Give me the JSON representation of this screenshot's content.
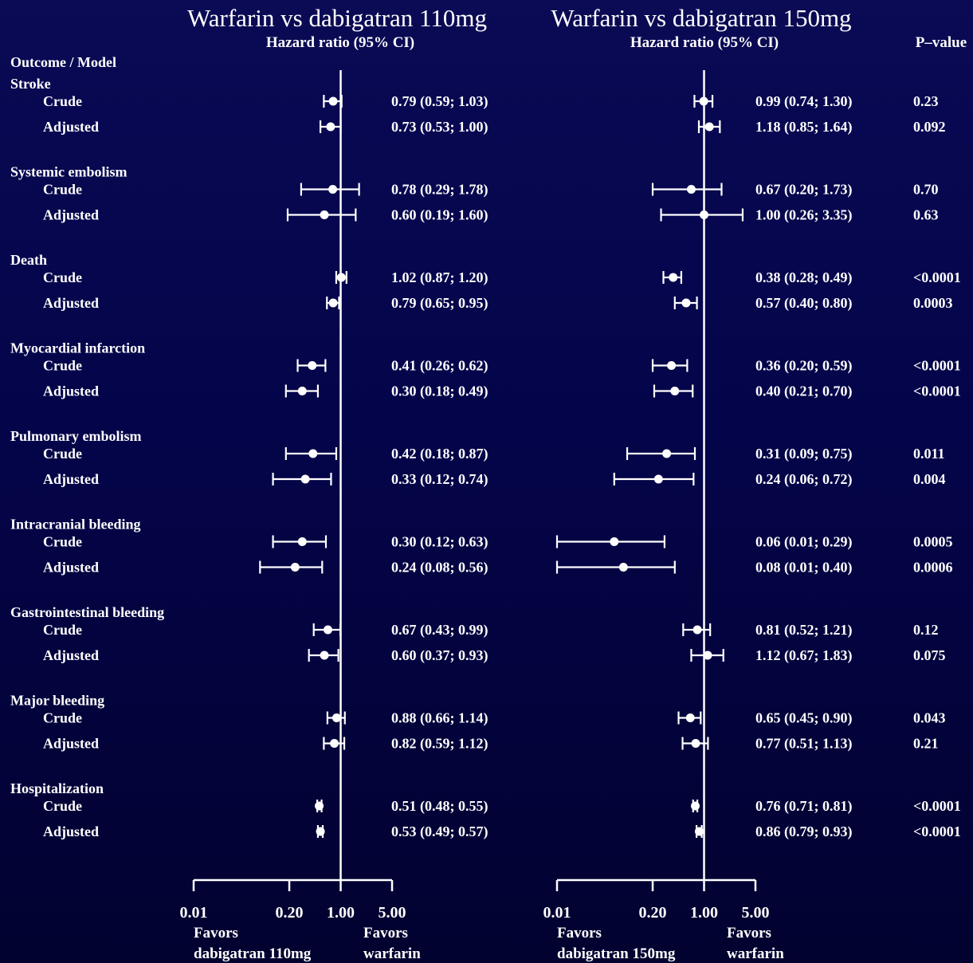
{
  "titles": {
    "left": "Warfarin vs dabigatran 110mg",
    "right": "Warfarin vs dabigatran 150mg",
    "left_sub": "Hazard ratio (95% CI)",
    "right_sub": "Hazard ratio (95% CI)",
    "pvalue_header": "P–value",
    "outcome_header": "Outcome / Model"
  },
  "colors": {
    "background": "#04044a",
    "foreground": "#ffffff"
  },
  "chart_data": {
    "type": "forest",
    "scale": "log",
    "xlim": [
      0.01,
      5.0
    ],
    "reference_line": 1.0,
    "xticks": [
      0.01,
      0.2,
      1.0,
      5.0
    ],
    "xtick_labels": [
      "0.01",
      "0.20",
      "1.00",
      "5.00"
    ],
    "panels": [
      {
        "key": "p110",
        "title": "Warfarin vs dabigatran 110mg",
        "favors_left": [
          "Favors",
          "dabigatran 110mg"
        ],
        "favors_right": [
          "Favors",
          "warfarin"
        ]
      },
      {
        "key": "p150",
        "title": "Warfarin vs dabigatran 150mg",
        "favors_left": [
          "Favors",
          "dabigatran 150mg"
        ],
        "favors_right": [
          "Favors",
          "warfarin"
        ]
      }
    ],
    "outcomes": [
      {
        "name": "Stroke",
        "rows": [
          {
            "model": "Crude",
            "p110": {
              "hr": 0.79,
              "lo": 0.59,
              "hi": 1.03,
              "label": "0.79 (0.59; 1.03)"
            },
            "p150": {
              "hr": 0.99,
              "lo": 0.74,
              "hi": 1.3,
              "label": "0.99 (0.74; 1.30)"
            },
            "p": "0.23"
          },
          {
            "model": "Adjusted",
            "p110": {
              "hr": 0.73,
              "lo": 0.53,
              "hi": 1.0,
              "label": "0.73 (0.53; 1.00)"
            },
            "p150": {
              "hr": 1.18,
              "lo": 0.85,
              "hi": 1.64,
              "label": "1.18 (0.85; 1.64)"
            },
            "p": "0.092"
          }
        ]
      },
      {
        "name": "Systemic embolism",
        "rows": [
          {
            "model": "Crude",
            "p110": {
              "hr": 0.78,
              "lo": 0.29,
              "hi": 1.78,
              "label": "0.78 (0.29; 1.78)"
            },
            "p150": {
              "hr": 0.67,
              "lo": 0.2,
              "hi": 1.73,
              "label": "0.67 (0.20; 1.73)"
            },
            "p": "0.70"
          },
          {
            "model": "Adjusted",
            "p110": {
              "hr": 0.6,
              "lo": 0.19,
              "hi": 1.6,
              "label": "0.60 (0.19; 1.60)"
            },
            "p150": {
              "hr": 1.0,
              "lo": 0.26,
              "hi": 3.35,
              "label": "1.00 (0.26; 3.35)"
            },
            "p": "0.63"
          }
        ]
      },
      {
        "name": "Death",
        "rows": [
          {
            "model": "Crude",
            "p110": {
              "hr": 1.02,
              "lo": 0.87,
              "hi": 1.2,
              "label": "1.02 (0.87; 1.20)"
            },
            "p150": {
              "hr": 0.38,
              "lo": 0.28,
              "hi": 0.49,
              "label": "0.38 (0.28; 0.49)"
            },
            "p": "<0.0001"
          },
          {
            "model": "Adjusted",
            "p110": {
              "hr": 0.79,
              "lo": 0.65,
              "hi": 0.95,
              "label": "0.79 (0.65; 0.95)"
            },
            "p150": {
              "hr": 0.57,
              "lo": 0.4,
              "hi": 0.8,
              "label": "0.57 (0.40; 0.80)"
            },
            "p": "0.0003"
          }
        ]
      },
      {
        "name": "Myocardial infarction",
        "rows": [
          {
            "model": "Crude",
            "p110": {
              "hr": 0.41,
              "lo": 0.26,
              "hi": 0.62,
              "label": "0.41 (0.26; 0.62)"
            },
            "p150": {
              "hr": 0.36,
              "lo": 0.2,
              "hi": 0.59,
              "label": "0.36 (0.20; 0.59)"
            },
            "p": "<0.0001"
          },
          {
            "model": "Adjusted",
            "p110": {
              "hr": 0.3,
              "lo": 0.18,
              "hi": 0.49,
              "label": "0.30 (0.18; 0.49)"
            },
            "p150": {
              "hr": 0.4,
              "lo": 0.21,
              "hi": 0.7,
              "label": "0.40 (0.21; 0.70)"
            },
            "p": "<0.0001"
          }
        ]
      },
      {
        "name": "Pulmonary embolism",
        "rows": [
          {
            "model": "Crude",
            "p110": {
              "hr": 0.42,
              "lo": 0.18,
              "hi": 0.87,
              "label": "0.42 (0.18; 0.87)"
            },
            "p150": {
              "hr": 0.31,
              "lo": 0.09,
              "hi": 0.75,
              "label": "0.31 (0.09; 0.75)"
            },
            "p": "0.011"
          },
          {
            "model": "Adjusted",
            "p110": {
              "hr": 0.33,
              "lo": 0.12,
              "hi": 0.74,
              "label": "0.33 (0.12; 0.74)"
            },
            "p150": {
              "hr": 0.24,
              "lo": 0.06,
              "hi": 0.72,
              "label": "0.24 (0.06; 0.72)"
            },
            "p": "0.004"
          }
        ]
      },
      {
        "name": "Intracranial bleeding",
        "rows": [
          {
            "model": "Crude",
            "p110": {
              "hr": 0.3,
              "lo": 0.12,
              "hi": 0.63,
              "label": "0.30 (0.12; 0.63)"
            },
            "p150": {
              "hr": 0.06,
              "lo": 0.01,
              "hi": 0.29,
              "label": "0.06 (0.01; 0.29)"
            },
            "p": "0.0005"
          },
          {
            "model": "Adjusted",
            "p110": {
              "hr": 0.24,
              "lo": 0.08,
              "hi": 0.56,
              "label": "0.24 (0.08; 0.56)"
            },
            "p150": {
              "hr": 0.08,
              "lo": 0.01,
              "hi": 0.4,
              "label": "0.08 (0.01; 0.40)"
            },
            "p": "0.0006"
          }
        ]
      },
      {
        "name": "Gastrointestinal bleeding",
        "rows": [
          {
            "model": "Crude",
            "p110": {
              "hr": 0.67,
              "lo": 0.43,
              "hi": 0.99,
              "label": "0.67 (0.43; 0.99)"
            },
            "p150": {
              "hr": 0.81,
              "lo": 0.52,
              "hi": 1.21,
              "label": "0.81 (0.52; 1.21)"
            },
            "p": "0.12"
          },
          {
            "model": "Adjusted",
            "p110": {
              "hr": 0.6,
              "lo": 0.37,
              "hi": 0.93,
              "label": "0.60 (0.37; 0.93)"
            },
            "p150": {
              "hr": 1.12,
              "lo": 0.67,
              "hi": 1.83,
              "label": "1.12 (0.67; 1.83)"
            },
            "p": "0.075"
          }
        ]
      },
      {
        "name": "Major bleeding",
        "rows": [
          {
            "model": "Crude",
            "p110": {
              "hr": 0.88,
              "lo": 0.66,
              "hi": 1.14,
              "label": "0.88 (0.66; 1.14)"
            },
            "p150": {
              "hr": 0.65,
              "lo": 0.45,
              "hi": 0.9,
              "label": "0.65 (0.45; 0.90)"
            },
            "p": "0.043"
          },
          {
            "model": "Adjusted",
            "p110": {
              "hr": 0.82,
              "lo": 0.59,
              "hi": 1.12,
              "label": "0.82 (0.59; 1.12)"
            },
            "p150": {
              "hr": 0.77,
              "lo": 0.51,
              "hi": 1.13,
              "label": "0.77 (0.51; 1.13)"
            },
            "p": "0.21"
          }
        ]
      },
      {
        "name": "Hospitalization",
        "rows": [
          {
            "model": "Crude",
            "p110": {
              "hr": 0.51,
              "lo": 0.48,
              "hi": 0.55,
              "label": "0.51 (0.48; 0.55)"
            },
            "p150": {
              "hr": 0.76,
              "lo": 0.71,
              "hi": 0.81,
              "label": "0.76 (0.71; 0.81)"
            },
            "p": "<0.0001"
          },
          {
            "model": "Adjusted",
            "p110": {
              "hr": 0.53,
              "lo": 0.49,
              "hi": 0.57,
              "label": "0.53 (0.49; 0.57)"
            },
            "p150": {
              "hr": 0.86,
              "lo": 0.79,
              "hi": 0.93,
              "label": "0.86 (0.79; 0.93)"
            },
            "p": "<0.0001"
          }
        ]
      }
    ]
  }
}
